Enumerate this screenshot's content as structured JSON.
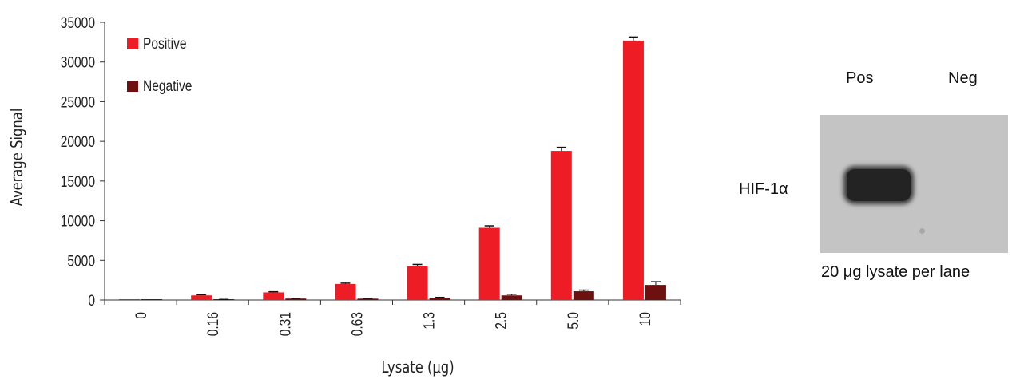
{
  "chart_data": {
    "type": "bar",
    "categories": [
      "0",
      "0.16",
      "0.31",
      "0.63",
      "1.3",
      "2.5",
      "5.0",
      "10"
    ],
    "series": [
      {
        "name": "Positive",
        "color": "#ee1c25",
        "values": [
          0,
          580,
          960,
          2020,
          4230,
          9100,
          18800,
          32700
        ],
        "errors": [
          0,
          80,
          80,
          100,
          250,
          250,
          450,
          450
        ]
      },
      {
        "name": "Negative",
        "color": "#6e1010",
        "values": [
          0,
          40,
          180,
          170,
          280,
          580,
          1100,
          1900
        ],
        "errors": [
          0,
          30,
          40,
          40,
          50,
          150,
          150,
          400
        ]
      }
    ],
    "ylabel": "Average Signal",
    "xlabel": "Lysate (μg)",
    "ylim": [
      0,
      35000
    ],
    "yticks": [
      "0",
      "5000",
      "10000",
      "15000",
      "20000",
      "25000",
      "30000",
      "35000"
    ],
    "legend_position": "top-left",
    "grid": false
  },
  "blot": {
    "lane_pos": "Pos",
    "lane_neg": "Neg",
    "band_label": "HIF-1α",
    "caption": "20 μg lysate per lane"
  }
}
